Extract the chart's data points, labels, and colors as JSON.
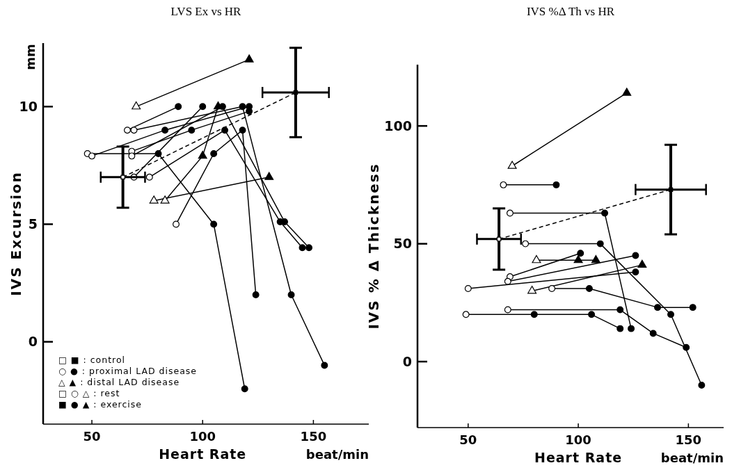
{
  "chart_data": [
    {
      "type": "line",
      "title": "LVS Ex vs HR",
      "xlabel": "Heart Rate",
      "ylabel": "IVS Excursion",
      "xlim": [
        28,
        175
      ],
      "ylim": [
        -3.5,
        12.7
      ],
      "xticks": [
        50,
        100,
        150
      ],
      "yticks": [
        0,
        5,
        10
      ],
      "grid": false,
      "annotations": [
        "mm",
        "beat/min",
        "□ ■ : control",
        "○ ● : proximal LAD disease",
        "△ ▲ : distal LAD disease",
        "□ ○ △ : rest",
        "■ ● ▲ : exercise"
      ],
      "series": [
        {
          "color": "#000000",
          "marker": "triangle",
          "x": [
            70,
            121
          ],
          "values": [
            10.0,
            12.0
          ],
          "colors": [
            "#ffffff",
            "#000000"
          ]
        },
        {
          "color": "#000000",
          "marker": "circle",
          "x": [
            66,
            89
          ],
          "values": [
            9.0,
            10.0
          ],
          "colors": [
            "#ffffff",
            "#000000"
          ]
        },
        {
          "color": "#000000",
          "marker": "circle",
          "x": [
            69,
            118,
            140,
            155
          ],
          "values": [
            9.0,
            10.0,
            2.0,
            -1.0
          ],
          "colors": [
            "#ffffff",
            "#000000",
            "#000000",
            "#000000"
          ]
        },
        {
          "color": "#000000",
          "marker": "circle",
          "x": [
            48,
            80,
            105,
            119
          ],
          "values": [
            8.0,
            8.0,
            5.0,
            -2.0
          ],
          "colors": [
            "#ffffff",
            "#000000",
            "#000000",
            "#000000"
          ]
        },
        {
          "color": "#000000",
          "marker": "circle",
          "x": [
            50,
            83,
            121
          ],
          "values": [
            7.9,
            9.0,
            10.0
          ],
          "colors": [
            "#ffffff",
            "#000000",
            "#000000"
          ]
        },
        {
          "color": "#000000",
          "marker": "circle",
          "x": [
            68,
            95,
            121
          ],
          "values": [
            8.1,
            9.0,
            9.8
          ],
          "colors": [
            "#ffffff",
            "#000000",
            "#000000"
          ]
        },
        {
          "color": "#000000",
          "marker": "circle",
          "x": [
            68,
            109,
            137,
            148
          ],
          "values": [
            7.9,
            10.0,
            5.1,
            4.0
          ],
          "colors": [
            "#ffffff",
            "#000000",
            "#000000",
            "#000000"
          ]
        },
        {
          "color": "#000000",
          "marker": "circle",
          "x": [
            69,
            100
          ],
          "values": [
            7.0,
            10.0
          ],
          "colors": [
            "#ffffff",
            "#000000"
          ]
        },
        {
          "color": "#000000",
          "marker": "circle",
          "x": [
            76,
            110,
            135,
            145
          ],
          "values": [
            7.0,
            9.0,
            5.1,
            4.0
          ],
          "colors": [
            "#ffffff",
            "#000000",
            "#000000",
            "#000000"
          ]
        },
        {
          "color": "#000000",
          "marker": "triangle",
          "x": [
            78,
            130
          ],
          "values": [
            6.0,
            7.0
          ],
          "colors": [
            "#ffffff",
            "#000000"
          ]
        },
        {
          "color": "#000000",
          "marker": "triangle",
          "x": [
            83,
            100,
            107
          ],
          "values": [
            6.0,
            7.9,
            10.0
          ],
          "colors": [
            "#ffffff",
            "#000000",
            "#000000"
          ]
        },
        {
          "color": "#000000",
          "marker": "circle",
          "x": [
            88,
            105,
            118,
            124
          ],
          "values": [
            5.0,
            8.0,
            9.0,
            2.0
          ],
          "colors": [
            "#ffffff",
            "#000000",
            "#000000",
            "#000000"
          ]
        },
        {
          "color": "#000000",
          "marker": "square",
          "line_style": "dashed",
          "x": [
            64,
            142
          ],
          "values": [
            7.0,
            10.6
          ],
          "errors": [
            1.3,
            1.9
          ],
          "xerrors": [
            10,
            15
          ],
          "colors": [
            "#ffffff",
            "#000000"
          ]
        }
      ]
    },
    {
      "type": "line",
      "title": "IVS %Δ Th vs HR",
      "xlabel": "Heart Rate",
      "ylabel": "IVS % Δ Thickness",
      "xlim": [
        27,
        166
      ],
      "ylim": [
        -28,
        126
      ],
      "xticks": [
        50,
        100,
        150
      ],
      "yticks": [
        0,
        50,
        100
      ],
      "grid": false,
      "annotations": [
        "beat/min"
      ],
      "series": [
        {
          "color": "#000000",
          "marker": "triangle",
          "x": [
            70,
            122
          ],
          "values": [
            83,
            114
          ],
          "colors": [
            "#ffffff",
            "#000000"
          ]
        },
        {
          "color": "#000000",
          "marker": "circle",
          "x": [
            66,
            90
          ],
          "values": [
            75,
            75
          ],
          "colors": [
            "#ffffff",
            "#000000"
          ]
        },
        {
          "color": "#000000",
          "marker": "circle",
          "x": [
            69,
            112,
            124
          ],
          "values": [
            63,
            63,
            14
          ],
          "colors": [
            "#ffffff",
            "#000000",
            "#000000"
          ]
        },
        {
          "color": "#000000",
          "marker": "circle",
          "x": [
            76,
            110,
            142,
            156
          ],
          "values": [
            50,
            50,
            20,
            -10
          ],
          "colors": [
            "#ffffff",
            "#000000",
            "#000000",
            "#000000"
          ]
        },
        {
          "color": "#000000",
          "marker": "triangle",
          "x": [
            81,
            100,
            108
          ],
          "values": [
            43,
            43,
            43
          ],
          "colors": [
            "#ffffff",
            "#000000",
            "#000000"
          ]
        },
        {
          "color": "#000000",
          "marker": "circle",
          "x": [
            69,
            101
          ],
          "values": [
            36,
            46
          ],
          "colors": [
            "#ffffff",
            "#000000"
          ]
        },
        {
          "color": "#000000",
          "marker": "circle",
          "x": [
            68,
            126
          ],
          "values": [
            34,
            45
          ],
          "colors": [
            "#ffffff",
            "#000000"
          ]
        },
        {
          "color": "#000000",
          "marker": "circle",
          "x": [
            50,
            126
          ],
          "values": [
            31,
            38
          ],
          "colors": [
            "#ffffff",
            "#000000"
          ]
        },
        {
          "color": "#000000",
          "marker": "triangle",
          "x": [
            79,
            129
          ],
          "values": [
            30,
            41
          ],
          "colors": [
            "#ffffff",
            "#000000"
          ]
        },
        {
          "color": "#000000",
          "marker": "circle",
          "x": [
            88,
            105,
            136,
            152
          ],
          "values": [
            31,
            31,
            23,
            23
          ],
          "colors": [
            "#ffffff",
            "#000000",
            "#000000",
            "#000000"
          ]
        },
        {
          "color": "#000000",
          "marker": "circle",
          "x": [
            68,
            119,
            134,
            149
          ],
          "values": [
            22,
            22,
            12,
            6
          ],
          "colors": [
            "#ffffff",
            "#000000",
            "#000000",
            "#000000"
          ]
        },
        {
          "color": "#000000",
          "marker": "circle",
          "x": [
            49,
            80,
            106,
            119
          ],
          "values": [
            20,
            20,
            20,
            14
          ],
          "colors": [
            "#ffffff",
            "#000000",
            "#000000",
            "#000000"
          ]
        },
        {
          "color": "#000000",
          "marker": "square",
          "line_style": "dashed",
          "x": [
            64,
            142
          ],
          "values": [
            52,
            73
          ],
          "errors": [
            13,
            19
          ],
          "xerrors": [
            10,
            16
          ],
          "colors": [
            "#ffffff",
            "#000000"
          ]
        }
      ]
    }
  ]
}
